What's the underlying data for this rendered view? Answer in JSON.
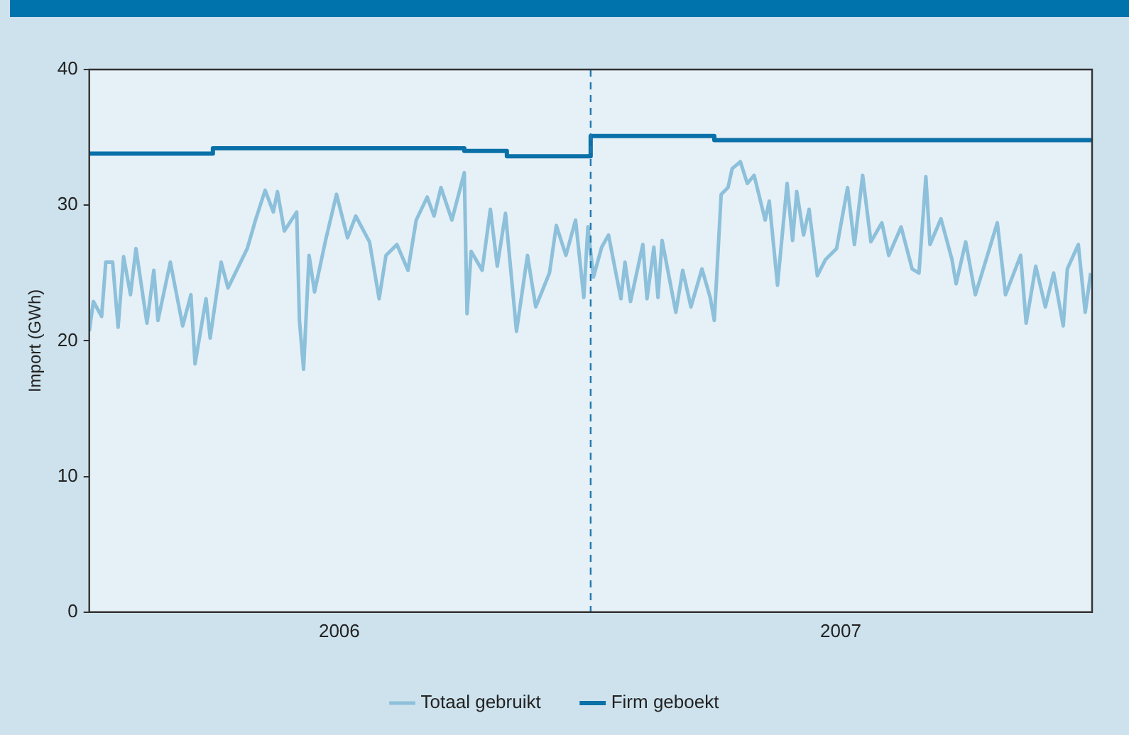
{
  "chart_data": {
    "type": "line",
    "ylabel": "Import (GWh)",
    "xlim": [
      "2006-01-01",
      "2008-01-01"
    ],
    "xticks": [
      {
        "value": "2006-07-02",
        "label": "2006"
      },
      {
        "value": "2007-07-02",
        "label": "2007"
      }
    ],
    "ylim": [
      0,
      40
    ],
    "yticks": [
      0,
      10,
      20,
      30,
      40
    ],
    "grid": false,
    "legend": "bottom",
    "marker": "none",
    "line_style": "solid",
    "ref_lines": [
      {
        "axis": "x",
        "value": "2007-01-01",
        "color": "#1f7ab0",
        "line_style": "dashed"
      }
    ],
    "series": [
      {
        "name": "Totaal gebruikt",
        "color": "#8dc0da",
        "type": "line",
        "x": [
          "2006-01-01",
          "2006-01-04",
          "2006-01-10",
          "2006-01-13",
          "2006-01-18",
          "2006-01-22",
          "2006-01-26",
          "2006-01-31",
          "2006-02-04",
          "2006-02-12",
          "2006-02-17",
          "2006-02-20",
          "2006-03-01",
          "2006-03-10",
          "2006-03-16",
          "2006-03-19",
          "2006-03-27",
          "2006-03-30",
          "2006-04-07",
          "2006-04-12",
          "2006-04-26",
          "2006-05-02",
          "2006-05-09",
          "2006-05-15",
          "2006-05-18",
          "2006-05-23",
          "2006-06-01",
          "2006-06-03",
          "2006-06-06",
          "2006-06-10",
          "2006-06-14",
          "2006-06-22",
          "2006-06-30",
          "2006-07-08",
          "2006-07-14",
          "2006-07-24",
          "2006-07-31",
          "2006-08-05",
          "2006-08-13",
          "2006-08-21",
          "2006-08-27",
          "2006-09-04",
          "2006-09-09",
          "2006-09-14",
          "2006-09-22",
          "2006-10-01",
          "2006-10-03",
          "2006-10-06",
          "2006-10-14",
          "2006-10-20",
          "2006-10-25",
          "2006-10-31",
          "2006-11-08",
          "2006-11-16",
          "2006-11-22",
          "2006-12-02",
          "2006-12-07",
          "2006-12-14",
          "2006-12-21",
          "2006-12-27",
          "2006-12-30",
          "2007-01-03",
          "2007-01-09",
          "2007-01-14",
          "2007-01-23",
          "2007-01-26",
          "2007-01-30",
          "2007-02-08",
          "2007-02-11",
          "2007-02-16",
          "2007-02-19",
          "2007-02-22",
          "2007-03-04",
          "2007-03-09",
          "2007-03-15",
          "2007-03-23",
          "2007-03-29",
          "2007-04-01",
          "2007-04-06",
          "2007-04-11",
          "2007-04-14",
          "2007-04-20",
          "2007-04-25",
          "2007-04-30",
          "2007-05-08",
          "2007-05-11",
          "2007-05-17",
          "2007-05-24",
          "2007-05-28",
          "2007-05-31",
          "2007-06-05",
          "2007-06-09",
          "2007-06-15",
          "2007-06-21",
          "2007-06-29",
          "2007-07-07",
          "2007-07-12",
          "2007-07-18",
          "2007-07-24",
          "2007-08-01",
          "2007-08-06",
          "2007-08-15",
          "2007-08-23",
          "2007-08-28",
          "2007-09-02",
          "2007-09-05",
          "2007-09-13",
          "2007-09-21",
          "2007-09-24",
          "2007-10-01",
          "2007-10-08",
          "2007-10-15",
          "2007-10-24",
          "2007-10-30",
          "2007-11-10",
          "2007-11-14",
          "2007-11-21",
          "2007-11-28",
          "2007-12-04",
          "2007-12-11",
          "2007-12-14",
          "2007-12-22",
          "2007-12-27",
          "2007-12-31"
        ],
        "values": [
          20.7,
          22.9,
          21.8,
          25.8,
          25.8,
          21.0,
          26.2,
          23.4,
          26.8,
          21.3,
          25.2,
          21.5,
          25.8,
          21.1,
          23.4,
          18.3,
          23.1,
          20.2,
          25.8,
          23.9,
          26.8,
          28.9,
          31.1,
          29.5,
          31.0,
          28.1,
          29.5,
          21.5,
          17.9,
          26.3,
          23.6,
          27.4,
          30.8,
          27.6,
          29.2,
          27.3,
          23.1,
          26.3,
          27.1,
          25.2,
          28.9,
          30.6,
          29.2,
          31.3,
          28.9,
          32.4,
          22.0,
          26.6,
          25.2,
          29.7,
          25.5,
          29.4,
          20.7,
          26.3,
          22.5,
          25.0,
          28.5,
          26.3,
          28.9,
          23.2,
          28.4,
          24.7,
          26.9,
          27.8,
          23.1,
          25.8,
          22.9,
          27.1,
          23.1,
          26.9,
          23.2,
          27.4,
          22.1,
          25.2,
          22.5,
          25.3,
          23.2,
          21.5,
          30.8,
          31.3,
          32.7,
          33.2,
          31.6,
          32.2,
          28.9,
          30.3,
          24.1,
          31.6,
          27.4,
          31.0,
          27.8,
          29.7,
          24.8,
          26.0,
          26.8,
          31.3,
          27.1,
          32.2,
          27.3,
          28.7,
          26.3,
          28.4,
          25.3,
          25.0,
          32.1,
          27.1,
          29.0,
          26.0,
          24.2,
          27.3,
          23.4,
          25.7,
          28.7,
          23.4,
          26.3,
          21.3,
          25.5,
          22.5,
          25.0,
          21.1,
          25.3,
          27.1,
          22.1,
          25.0
        ]
      },
      {
        "name": "Firm geboekt",
        "color": "#0a70a8",
        "type": "step",
        "x": [
          "2006-01-01",
          "2006-04-01",
          "2006-10-01",
          "2006-11-01",
          "2007-01-01",
          "2007-04-01",
          "2008-01-01"
        ],
        "values": [
          33.8,
          34.2,
          34.0,
          33.6,
          35.1,
          34.8,
          34.8
        ]
      }
    ]
  }
}
